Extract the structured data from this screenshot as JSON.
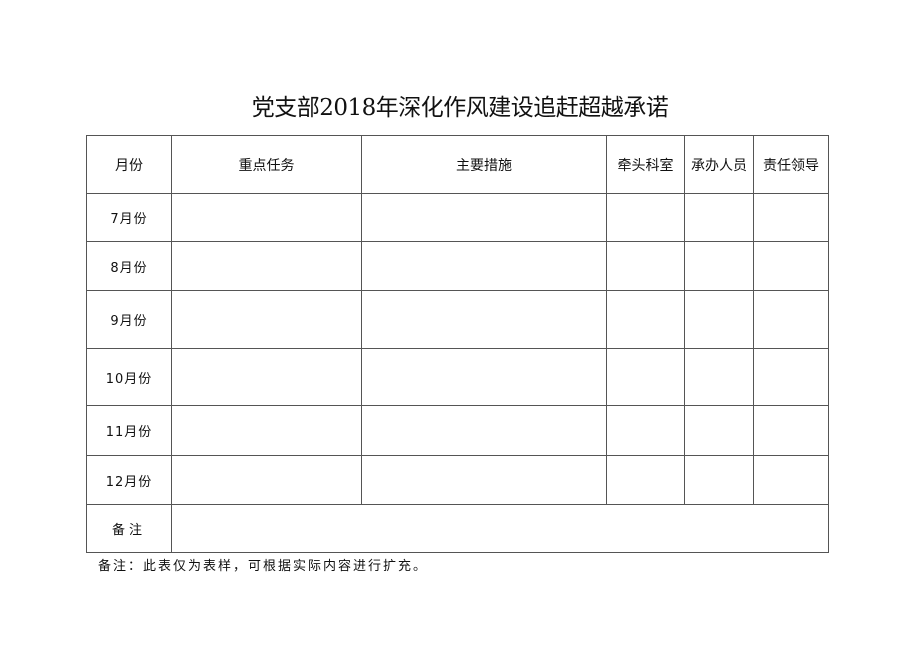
{
  "title": "党支部2018年深化作风建设追赶超越承诺",
  "table": {
    "headers": [
      "月份",
      "重点任务",
      "主要措施",
      "牵头科室",
      "承办人员",
      "责任领导"
    ],
    "months": [
      "7月份",
      "8月份",
      "9月份",
      "10月份",
      "11月份",
      "12月份"
    ],
    "remark_label": "备注"
  },
  "footnote": "备注：此表仅为表样，可根据实际内容进行扩充。"
}
